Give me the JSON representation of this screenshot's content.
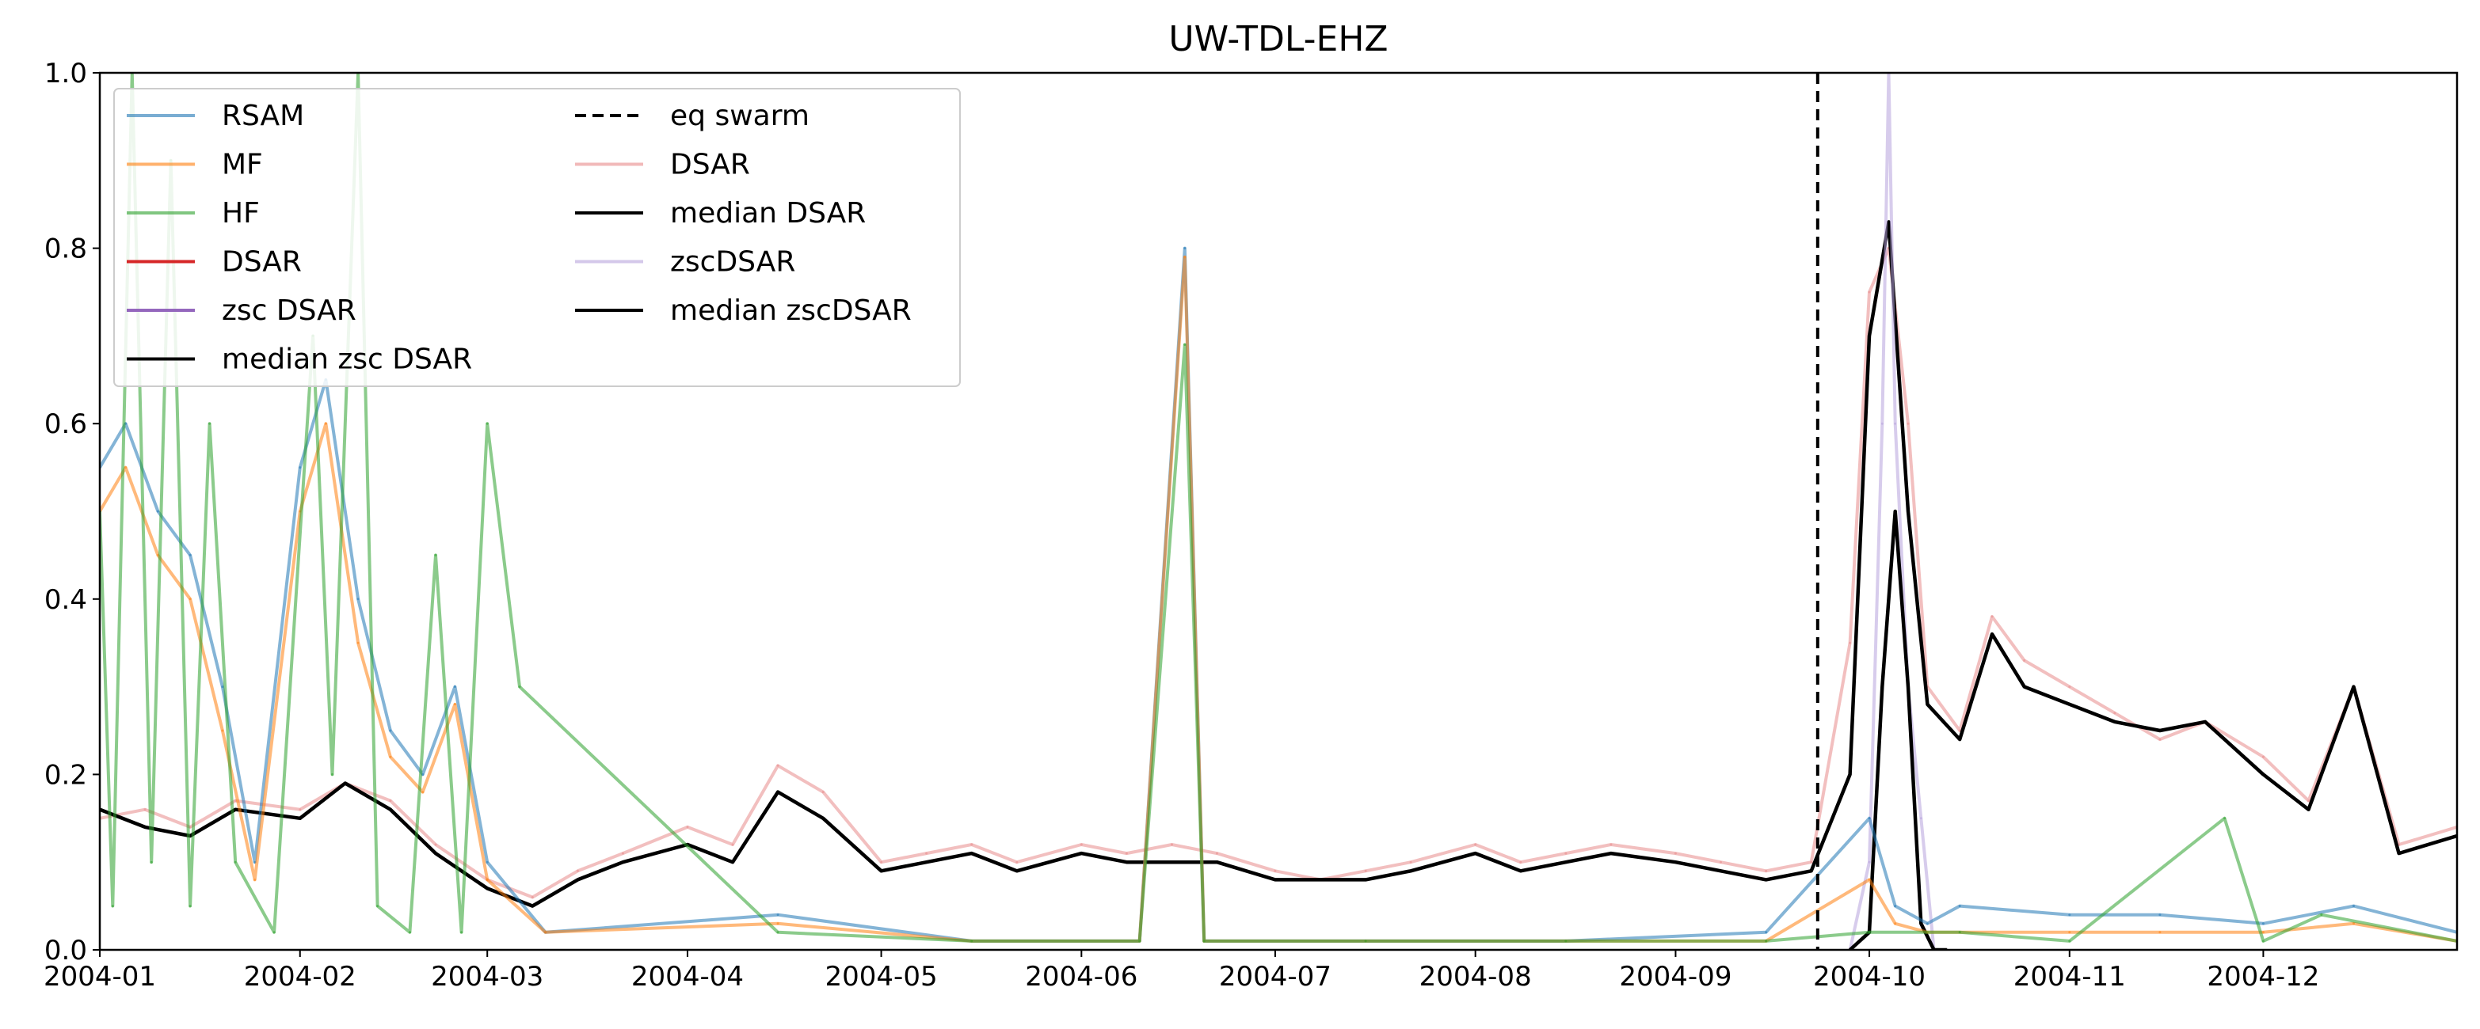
{
  "chart_data": {
    "type": "line",
    "title": "UW-TDL-EHZ",
    "xlabel": "",
    "ylabel": "",
    "x_range": [
      "2004-01-01",
      "2004-12-31"
    ],
    "ylim": [
      0.0,
      1.0
    ],
    "x_ticks": [
      "2004-01",
      "2004-02",
      "2004-03",
      "2004-04",
      "2004-05",
      "2004-06",
      "2004-07",
      "2004-08",
      "2004-09",
      "2004-10",
      "2004-11",
      "2004-12"
    ],
    "y_ticks": [
      "0.0",
      "0.2",
      "0.4",
      "0.6",
      "0.8",
      "1.0"
    ],
    "grid": false,
    "legend_position": "top-left",
    "legend": [
      {
        "label": "RSAM",
        "color": "#1f77b4",
        "style": "solid"
      },
      {
        "label": "MF",
        "color": "#ff7f0e",
        "style": "solid"
      },
      {
        "label": "HF",
        "color": "#2ca02c",
        "style": "solid"
      },
      {
        "label": "DSAR",
        "color": "#d62728",
        "style": "solid"
      },
      {
        "label": "zsc DSAR",
        "color": "#9467bd",
        "style": "solid"
      },
      {
        "label": "median zsc DSAR",
        "color": "#000000",
        "style": "solid"
      },
      {
        "label": "eq swarm",
        "color": "#000000",
        "style": "dashed"
      },
      {
        "label": "DSAR",
        "color": "#e88b8b",
        "style": "solid"
      },
      {
        "label": "median DSAR",
        "color": "#000000",
        "style": "solid"
      },
      {
        "label": "zscDSAR",
        "color": "#b7a3dc",
        "style": "solid"
      },
      {
        "label": "median zscDSAR",
        "color": "#000000",
        "style": "solid"
      }
    ],
    "annotations": [
      {
        "type": "vline",
        "x": "2004-09-23",
        "style": "dashed",
        "color": "#000000"
      }
    ],
    "series": [
      {
        "name": "DSAR",
        "color": "#e88b8b",
        "x": [
          "2004-01-01",
          "2004-01-08",
          "2004-01-15",
          "2004-01-22",
          "2004-02-01",
          "2004-02-08",
          "2004-02-15",
          "2004-02-22",
          "2004-03-01",
          "2004-03-08",
          "2004-03-15",
          "2004-03-22",
          "2004-04-01",
          "2004-04-08",
          "2004-04-15",
          "2004-04-22",
          "2004-05-01",
          "2004-05-08",
          "2004-05-15",
          "2004-05-22",
          "2004-06-01",
          "2004-06-08",
          "2004-06-15",
          "2004-06-22",
          "2004-07-01",
          "2004-07-08",
          "2004-07-15",
          "2004-07-22",
          "2004-08-01",
          "2004-08-08",
          "2004-08-15",
          "2004-08-22",
          "2004-09-01",
          "2004-09-08",
          "2004-09-15",
          "2004-09-22",
          "2004-09-28",
          "2004-10-01",
          "2004-10-04",
          "2004-10-07",
          "2004-10-10",
          "2004-10-15",
          "2004-10-20",
          "2004-10-25",
          "2004-11-01",
          "2004-11-08",
          "2004-11-15",
          "2004-11-22",
          "2004-12-01",
          "2004-12-08",
          "2004-12-15",
          "2004-12-22",
          "2004-12-31"
        ],
        "values": [
          0.15,
          0.16,
          0.14,
          0.17,
          0.16,
          0.19,
          0.17,
          0.12,
          0.08,
          0.06,
          0.09,
          0.11,
          0.14,
          0.12,
          0.21,
          0.18,
          0.1,
          0.11,
          0.12,
          0.1,
          0.12,
          0.11,
          0.12,
          0.11,
          0.09,
          0.08,
          0.09,
          0.1,
          0.12,
          0.1,
          0.11,
          0.12,
          0.11,
          0.1,
          0.09,
          0.1,
          0.35,
          0.75,
          0.8,
          0.6,
          0.3,
          0.25,
          0.38,
          0.33,
          0.3,
          0.27,
          0.24,
          0.26,
          0.22,
          0.17,
          0.3,
          0.12,
          0.14
        ]
      },
      {
        "name": "median DSAR",
        "color": "#000000",
        "x": [
          "2004-01-01",
          "2004-01-08",
          "2004-01-15",
          "2004-01-22",
          "2004-02-01",
          "2004-02-08",
          "2004-02-15",
          "2004-02-22",
          "2004-03-01",
          "2004-03-08",
          "2004-03-15",
          "2004-03-22",
          "2004-04-01",
          "2004-04-08",
          "2004-04-15",
          "2004-04-22",
          "2004-05-01",
          "2004-05-08",
          "2004-05-15",
          "2004-05-22",
          "2004-06-01",
          "2004-06-08",
          "2004-06-15",
          "2004-06-22",
          "2004-07-01",
          "2004-07-08",
          "2004-07-15",
          "2004-07-22",
          "2004-08-01",
          "2004-08-08",
          "2004-08-15",
          "2004-08-22",
          "2004-09-01",
          "2004-09-08",
          "2004-09-15",
          "2004-09-22",
          "2004-09-28",
          "2004-10-01",
          "2004-10-04",
          "2004-10-07",
          "2004-10-10",
          "2004-10-15",
          "2004-10-20",
          "2004-10-25",
          "2004-11-01",
          "2004-11-08",
          "2004-11-15",
          "2004-11-22",
          "2004-12-01",
          "2004-12-08",
          "2004-12-15",
          "2004-12-22",
          "2004-12-31"
        ],
        "values": [
          0.16,
          0.14,
          0.13,
          0.16,
          0.15,
          0.19,
          0.16,
          0.11,
          0.07,
          0.05,
          0.08,
          0.1,
          0.12,
          0.1,
          0.18,
          0.15,
          0.09,
          0.1,
          0.11,
          0.09,
          0.11,
          0.1,
          0.1,
          0.1,
          0.08,
          0.08,
          0.08,
          0.09,
          0.11,
          0.09,
          0.1,
          0.11,
          0.1,
          0.09,
          0.08,
          0.09,
          0.2,
          0.7,
          0.83,
          0.5,
          0.28,
          0.24,
          0.36,
          0.3,
          0.28,
          0.26,
          0.25,
          0.26,
          0.2,
          0.16,
          0.3,
          0.11,
          0.13
        ]
      },
      {
        "name": "zscDSAR",
        "color": "#b7a3dc",
        "x": [
          "2004-09-28",
          "2004-10-01",
          "2004-10-03",
          "2004-10-04",
          "2004-10-05",
          "2004-10-07",
          "2004-10-09",
          "2004-10-11"
        ],
        "values": [
          0.0,
          0.1,
          0.6,
          1.0,
          0.6,
          0.3,
          0.15,
          0.0
        ]
      },
      {
        "name": "median zscDSAR",
        "color": "#000000",
        "x": [
          "2004-09-28",
          "2004-10-01",
          "2004-10-03",
          "2004-10-05",
          "2004-10-07",
          "2004-10-09",
          "2004-10-11",
          "2004-10-13"
        ],
        "values": [
          0.0,
          0.02,
          0.3,
          0.5,
          0.3,
          0.03,
          0.0,
          0.0
        ]
      },
      {
        "name": "RSAM",
        "color": "#1f77b4",
        "x": [
          "2004-01-01",
          "2004-01-05",
          "2004-01-10",
          "2004-01-15",
          "2004-01-20",
          "2004-01-25",
          "2004-02-01",
          "2004-02-05",
          "2004-02-10",
          "2004-02-15",
          "2004-02-20",
          "2004-02-25",
          "2004-03-01",
          "2004-03-10",
          "2004-04-15",
          "2004-05-15",
          "2004-06-10",
          "2004-06-17",
          "2004-06-20",
          "2004-07-15",
          "2004-08-15",
          "2004-09-15",
          "2004-10-01",
          "2004-10-05",
          "2004-10-10",
          "2004-10-15",
          "2004-11-01",
          "2004-11-15",
          "2004-12-01",
          "2004-12-15",
          "2004-12-31"
        ],
        "values": [
          0.55,
          0.6,
          0.5,
          0.45,
          0.3,
          0.1,
          0.55,
          0.65,
          0.4,
          0.25,
          0.2,
          0.3,
          0.1,
          0.02,
          0.04,
          0.01,
          0.01,
          0.8,
          0.01,
          0.01,
          0.01,
          0.02,
          0.15,
          0.05,
          0.03,
          0.05,
          0.04,
          0.04,
          0.03,
          0.05,
          0.02
        ]
      },
      {
        "name": "MF",
        "color": "#ff7f0e",
        "x": [
          "2004-01-01",
          "2004-01-05",
          "2004-01-10",
          "2004-01-15",
          "2004-01-20",
          "2004-01-25",
          "2004-02-01",
          "2004-02-05",
          "2004-02-10",
          "2004-02-15",
          "2004-02-20",
          "2004-02-25",
          "2004-03-01",
          "2004-03-10",
          "2004-04-15",
          "2004-05-15",
          "2004-06-10",
          "2004-06-17",
          "2004-06-20",
          "2004-07-15",
          "2004-08-15",
          "2004-09-15",
          "2004-10-01",
          "2004-10-05",
          "2004-10-10",
          "2004-10-15",
          "2004-11-01",
          "2004-11-15",
          "2004-12-01",
          "2004-12-15",
          "2004-12-31"
        ],
        "values": [
          0.5,
          0.55,
          0.45,
          0.4,
          0.25,
          0.08,
          0.5,
          0.6,
          0.35,
          0.22,
          0.18,
          0.28,
          0.08,
          0.02,
          0.03,
          0.01,
          0.01,
          0.79,
          0.01,
          0.01,
          0.01,
          0.01,
          0.08,
          0.03,
          0.02,
          0.02,
          0.02,
          0.02,
          0.02,
          0.03,
          0.01
        ]
      },
      {
        "name": "HF",
        "color": "#2ca02c",
        "x": [
          "2004-01-01",
          "2004-01-03",
          "2004-01-06",
          "2004-01-09",
          "2004-01-12",
          "2004-01-15",
          "2004-01-18",
          "2004-01-22",
          "2004-01-28",
          "2004-02-03",
          "2004-02-06",
          "2004-02-10",
          "2004-02-13",
          "2004-02-18",
          "2004-02-22",
          "2004-02-26",
          "2004-03-01",
          "2004-03-06",
          "2004-04-15",
          "2004-05-15",
          "2004-06-10",
          "2004-06-17",
          "2004-06-20",
          "2004-07-15",
          "2004-08-15",
          "2004-09-15",
          "2004-10-01",
          "2004-10-15",
          "2004-11-01",
          "2004-11-25",
          "2004-12-01",
          "2004-12-10",
          "2004-12-31"
        ],
        "values": [
          0.5,
          0.05,
          1.0,
          0.1,
          0.9,
          0.05,
          0.6,
          0.1,
          0.02,
          0.7,
          0.2,
          1.0,
          0.05,
          0.02,
          0.45,
          0.02,
          0.6,
          0.3,
          0.02,
          0.01,
          0.01,
          0.69,
          0.01,
          0.01,
          0.01,
          0.01,
          0.02,
          0.02,
          0.01,
          0.15,
          0.01,
          0.04,
          0.01
        ]
      }
    ]
  }
}
